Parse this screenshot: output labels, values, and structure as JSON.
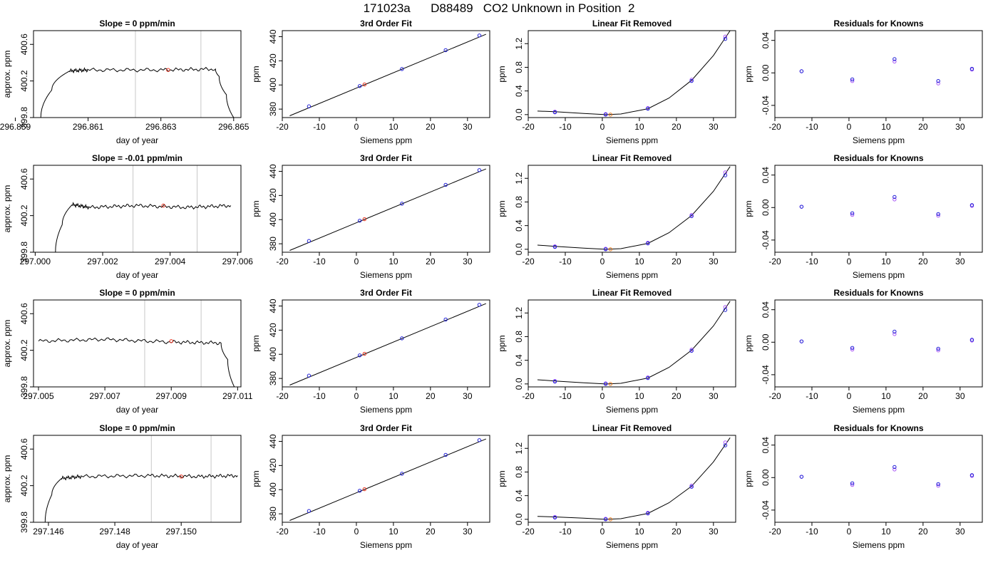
{
  "page": {
    "title": "171023a      D88489   CO2 Unknown in Position  2"
  },
  "colors": {
    "trace": "#000000",
    "marker_lines": "#c8c8c8",
    "unknown_point": "#e8321e",
    "known_point_a": "#1f1fd6",
    "known_point_b": "#a855f7",
    "orange_point": "#e87a1e"
  },
  "chart_data": [
    {
      "type": "line",
      "title": "Slope =  0  ppm/min",
      "xlabel": "day of year",
      "ylabel": "approx. ppm",
      "xlim": [
        296.8595,
        296.8652
      ],
      "ylim": [
        399.8,
        400.75
      ],
      "xticks": [
        "296.859",
        "296.861",
        "296.863",
        "296.865"
      ],
      "xtick_values": [
        296.859,
        296.861,
        296.863,
        296.865
      ],
      "yticks": [
        "399.8",
        "400.2",
        "400.6"
      ],
      "ytick_values": [
        399.8,
        400.2,
        400.6
      ],
      "markers_x": [
        296.8623,
        296.8641
      ],
      "point": {
        "x": 296.8632,
        "y": 400.32
      },
      "trace": {
        "x": [
          296.8597,
          296.86,
          296.8605,
          296.861,
          296.863,
          296.8645,
          296.8646,
          296.8648,
          296.865
        ],
        "y": [
          399.8,
          400.1,
          400.31,
          400.32,
          400.32,
          400.33,
          400.25,
          400.05,
          399.8
        ]
      }
    },
    {
      "type": "scatter",
      "title": "3rd Order Fit",
      "xlabel": "Siemens ppm",
      "ylabel": "ppm",
      "xlim": [
        -20,
        36
      ],
      "ylim": [
        373,
        445
      ],
      "xticks": [
        "-20",
        "-10",
        "0",
        "10",
        "20",
        "30"
      ],
      "xtick_values": [
        -20,
        -10,
        0,
        10,
        20,
        30
      ],
      "yticks": [
        "380",
        "400",
        "420",
        "440"
      ],
      "ytick_values": [
        380,
        400,
        420,
        440
      ],
      "fit_line": {
        "x": [
          -18,
          35
        ],
        "y": [
          374.5,
          442
        ]
      },
      "known_points": {
        "x": [
          -12.8,
          0.9,
          12.3,
          24.1,
          33.2
        ],
        "y": [
          382.3,
          399.1,
          413.2,
          428.8,
          441.0
        ]
      },
      "unknown_point": {
        "x": 2.2,
        "y": 400.4
      }
    },
    {
      "type": "scatter",
      "title": "Linear Fit Removed",
      "xlabel": "Siemens ppm",
      "ylabel": "ppm",
      "xlim": [
        -20,
        36
      ],
      "ylim": [
        -0.05,
        1.42
      ],
      "xticks": [
        "-20",
        "-10",
        "0",
        "10",
        "20",
        "30"
      ],
      "xtick_values": [
        -20,
        -10,
        0,
        10,
        20,
        30
      ],
      "yticks": [
        "0.0",
        "0.4",
        "0.8",
        "1.2"
      ],
      "ytick_values": [
        0,
        0.4,
        0.8,
        1.2
      ],
      "curve": {
        "x": [
          -17.5,
          -12.8,
          -5,
          0.9,
          5,
          12.3,
          18,
          24.1,
          30,
          34.5
        ],
        "y": [
          0.06,
          0.05,
          0.02,
          0.0,
          0.01,
          0.1,
          0.28,
          0.58,
          1.0,
          1.42
        ]
      },
      "known_points_a": {
        "x": [
          -12.8,
          0.9,
          12.3,
          24.1,
          33.2
        ],
        "y": [
          0.04,
          0.0,
          0.1,
          0.57,
          1.28
        ]
      },
      "known_points_b": {
        "x": [
          -12.8,
          0.9,
          12.3,
          24.1,
          33.2
        ],
        "y": [
          0.05,
          0.01,
          0.11,
          0.59,
          1.32
        ]
      },
      "orange_point": {
        "x": 2.2,
        "y": 0.0
      }
    },
    {
      "type": "scatter",
      "title": "Residuals for Knowns",
      "xlabel": "Siemens ppm",
      "ylabel": "ppm",
      "xlim": [
        -20,
        36
      ],
      "ylim": [
        -0.055,
        0.052
      ],
      "xticks": [
        "-20",
        "-10",
        "0",
        "10",
        "20",
        "30"
      ],
      "xtick_values": [
        -20,
        -10,
        0,
        10,
        20,
        30
      ],
      "yticks": [
        "-0.04",
        "0.00",
        "0.04"
      ],
      "ytick_values": [
        -0.04,
        0,
        0.04
      ],
      "points_a": {
        "x": [
          -12.8,
          0.9,
          12.3,
          24.1,
          33.2
        ],
        "y": [
          0.002,
          -0.008,
          0.017,
          -0.01,
          0.005
        ]
      },
      "points_b": {
        "x": [
          -12.8,
          0.9,
          12.3,
          24.1,
          33.2
        ],
        "y": [
          0.002,
          -0.01,
          0.014,
          -0.013,
          0.004
        ]
      }
    },
    {
      "type": "line",
      "title": "Slope =  -0.01  ppm/min",
      "xlabel": "day of year",
      "ylabel": "approx. ppm",
      "xlim": [
        296.99995,
        297.0061
      ],
      "ylim": [
        399.8,
        400.75
      ],
      "xticks": [
        "297.000",
        "297.002",
        "297.004",
        "297.006"
      ],
      "xtick_values": [
        297.0,
        297.002,
        297.004,
        297.006
      ],
      "yticks": [
        "399.8",
        "400.2",
        "400.6"
      ],
      "ytick_values": [
        399.8,
        400.2,
        400.6
      ],
      "markers_x": [
        297.0029,
        297.0048
      ],
      "point": {
        "x": 297.0038,
        "y": 400.31
      },
      "trace": {
        "x": [
          297.0006,
          297.0008,
          297.0011,
          297.0016,
          297.003,
          297.0045,
          297.0058
        ],
        "y": [
          399.8,
          400.1,
          400.32,
          400.29,
          400.31,
          400.29,
          400.31
        ]
      }
    },
    {
      "type": "scatter",
      "title": "3rd Order Fit",
      "xlabel": "Siemens ppm",
      "ylabel": "ppm",
      "xlim": [
        -20,
        36
      ],
      "ylim": [
        373,
        445
      ],
      "xticks": [
        "-20",
        "-10",
        "0",
        "10",
        "20",
        "30"
      ],
      "xtick_values": [
        -20,
        -10,
        0,
        10,
        20,
        30
      ],
      "yticks": [
        "380",
        "400",
        "420",
        "440"
      ],
      "ytick_values": [
        380,
        400,
        420,
        440
      ],
      "fit_line": {
        "x": [
          -18,
          35
        ],
        "y": [
          374.5,
          442
        ]
      },
      "known_points": {
        "x": [
          -12.8,
          0.9,
          12.3,
          24.1,
          33.2
        ],
        "y": [
          382.3,
          399.1,
          413.2,
          428.8,
          441.0
        ]
      },
      "unknown_point": {
        "x": 2.2,
        "y": 400.4
      }
    },
    {
      "type": "scatter",
      "title": "Linear Fit Removed",
      "xlabel": "Siemens ppm",
      "ylabel": "ppm",
      "xlim": [
        -20,
        36
      ],
      "ylim": [
        -0.05,
        1.42
      ],
      "xticks": [
        "-20",
        "-10",
        "0",
        "10",
        "20",
        "30"
      ],
      "xtick_values": [
        -20,
        -10,
        0,
        10,
        20,
        30
      ],
      "yticks": [
        "0.0",
        "0.4",
        "0.8",
        "1.2"
      ],
      "ytick_values": [
        0,
        0.4,
        0.8,
        1.2
      ],
      "curve": {
        "x": [
          -17.5,
          -12.8,
          -5,
          0.9,
          5,
          12.3,
          18,
          24.1,
          30,
          34.5
        ],
        "y": [
          0.07,
          0.05,
          0.02,
          0.0,
          0.01,
          0.1,
          0.28,
          0.57,
          0.98,
          1.4
        ]
      },
      "known_points_a": {
        "x": [
          -12.8,
          0.9,
          12.3,
          24.1,
          33.2
        ],
        "y": [
          0.04,
          0.0,
          0.1,
          0.56,
          1.25
        ]
      },
      "known_points_b": {
        "x": [
          -12.8,
          0.9,
          12.3,
          24.1,
          33.2
        ],
        "y": [
          0.05,
          0.01,
          0.11,
          0.58,
          1.3
        ]
      },
      "orange_point": {
        "x": 2.2,
        "y": 0.0
      }
    },
    {
      "type": "scatter",
      "title": "Residuals for Knowns",
      "xlabel": "Siemens ppm",
      "ylabel": "ppm",
      "xlim": [
        -20,
        36
      ],
      "ylim": [
        -0.055,
        0.052
      ],
      "xticks": [
        "-20",
        "-10",
        "0",
        "10",
        "20",
        "30"
      ],
      "xtick_values": [
        -20,
        -10,
        0,
        10,
        20,
        30
      ],
      "yticks": [
        "-0.04",
        "0.00",
        "0.04"
      ],
      "ytick_values": [
        -0.04,
        0,
        0.04
      ],
      "points_a": {
        "x": [
          -12.8,
          0.9,
          12.3,
          24.1,
          33.2
        ],
        "y": [
          0.001,
          -0.007,
          0.013,
          -0.008,
          0.003
        ]
      },
      "points_b": {
        "x": [
          -12.8,
          0.9,
          12.3,
          24.1,
          33.2
        ],
        "y": [
          0.001,
          -0.009,
          0.01,
          -0.01,
          0.002
        ]
      }
    },
    {
      "type": "line",
      "title": "Slope =  0  ppm/min",
      "xlabel": "day of year",
      "ylabel": "approx. ppm",
      "xlim": [
        297.00485,
        297.0111
      ],
      "ylim": [
        399.8,
        400.75
      ],
      "xticks": [
        "297.005",
        "297.007",
        "297.009",
        "297.011"
      ],
      "xtick_values": [
        297.005,
        297.007,
        297.009,
        297.011
      ],
      "yticks": [
        "399.8",
        "400.2",
        "400.6"
      ],
      "ytick_values": [
        399.8,
        400.2,
        400.6
      ],
      "markers_x": [
        297.0082,
        297.0099
      ],
      "point": {
        "x": 297.009,
        "y": 400.3
      },
      "trace": {
        "x": [
          297.005,
          297.007,
          297.009,
          297.0105,
          297.0107,
          297.0109
        ],
        "y": [
          400.3,
          400.32,
          400.29,
          400.28,
          400.1,
          399.8
        ]
      }
    },
    {
      "type": "scatter",
      "title": "3rd Order Fit",
      "xlabel": "Siemens ppm",
      "ylabel": "ppm",
      "xlim": [
        -20,
        36
      ],
      "ylim": [
        373,
        445
      ],
      "xticks": [
        "-20",
        "-10",
        "0",
        "10",
        "20",
        "30"
      ],
      "xtick_values": [
        -20,
        -10,
        0,
        10,
        20,
        30
      ],
      "yticks": [
        "380",
        "400",
        "420",
        "440"
      ],
      "ytick_values": [
        380,
        400,
        420,
        440
      ],
      "fit_line": {
        "x": [
          -18,
          35
        ],
        "y": [
          374.5,
          442
        ]
      },
      "known_points": {
        "x": [
          -12.8,
          0.9,
          12.3,
          24.1,
          33.2
        ],
        "y": [
          382.3,
          399.1,
          413.2,
          428.8,
          441.0
        ]
      },
      "unknown_point": {
        "x": 2.2,
        "y": 400.4
      }
    },
    {
      "type": "scatter",
      "title": "Linear Fit Removed",
      "xlabel": "Siemens ppm",
      "ylabel": "ppm",
      "xlim": [
        -20,
        36
      ],
      "ylim": [
        -0.05,
        1.42
      ],
      "xticks": [
        "-20",
        "-10",
        "0",
        "10",
        "20",
        "30"
      ],
      "xtick_values": [
        -20,
        -10,
        0,
        10,
        20,
        30
      ],
      "yticks": [
        "0.0",
        "0.4",
        "0.8",
        "1.2"
      ],
      "ytick_values": [
        0,
        0.4,
        0.8,
        1.2
      ],
      "curve": {
        "x": [
          -17.5,
          -12.8,
          -5,
          0.9,
          5,
          12.3,
          18,
          24.1,
          30,
          34.5
        ],
        "y": [
          0.07,
          0.05,
          0.02,
          0.0,
          0.01,
          0.1,
          0.28,
          0.57,
          0.98,
          1.4
        ]
      },
      "known_points_a": {
        "x": [
          -12.8,
          0.9,
          12.3,
          24.1,
          33.2
        ],
        "y": [
          0.04,
          0.0,
          0.1,
          0.56,
          1.25
        ]
      },
      "known_points_b": {
        "x": [
          -12.8,
          0.9,
          12.3,
          24.1,
          33.2
        ],
        "y": [
          0.05,
          0.01,
          0.11,
          0.58,
          1.3
        ]
      },
      "orange_point": {
        "x": 2.2,
        "y": 0.0
      }
    },
    {
      "type": "scatter",
      "title": "Residuals for Knowns",
      "xlabel": "Siemens ppm",
      "ylabel": "ppm",
      "xlim": [
        -20,
        36
      ],
      "ylim": [
        -0.055,
        0.052
      ],
      "xticks": [
        "-20",
        "-10",
        "0",
        "10",
        "20",
        "30"
      ],
      "xtick_values": [
        -20,
        -10,
        0,
        10,
        20,
        30
      ],
      "yticks": [
        "-0.04",
        "0.00",
        "0.04"
      ],
      "ytick_values": [
        -0.04,
        0,
        0.04
      ],
      "points_a": {
        "x": [
          -12.8,
          0.9,
          12.3,
          24.1,
          33.2
        ],
        "y": [
          0.001,
          -0.007,
          0.013,
          -0.008,
          0.003
        ]
      },
      "points_b": {
        "x": [
          -12.8,
          0.9,
          12.3,
          24.1,
          33.2
        ],
        "y": [
          0.001,
          -0.009,
          0.01,
          -0.01,
          0.002
        ]
      }
    },
    {
      "type": "line",
      "title": "Slope =  0  ppm/min",
      "xlabel": "day of year",
      "ylabel": "approx. ppm",
      "xlim": [
        297.14555,
        297.1518
      ],
      "ylim": [
        399.8,
        400.75
      ],
      "xticks": [
        "297.146",
        "297.148",
        "297.150"
      ],
      "xtick_values": [
        297.146,
        297.148,
        297.15
      ],
      "yticks": [
        "399.8",
        "400.2",
        "400.6"
      ],
      "ytick_values": [
        399.8,
        400.2,
        400.6
      ],
      "markers_x": [
        297.1491,
        297.1509
      ],
      "point": {
        "x": 297.15,
        "y": 400.3
      },
      "trace": {
        "x": [
          297.1459,
          297.1461,
          297.1464,
          297.147,
          297.149,
          297.1505,
          297.1517
        ],
        "y": [
          399.8,
          400.1,
          400.28,
          400.3,
          400.31,
          400.3,
          400.31
        ]
      }
    },
    {
      "type": "scatter",
      "title": "3rd Order Fit",
      "xlabel": "Siemens ppm",
      "ylabel": "ppm",
      "xlim": [
        -20,
        36
      ],
      "ylim": [
        373,
        445
      ],
      "xticks": [
        "-20",
        "-10",
        "0",
        "10",
        "20",
        "30"
      ],
      "xtick_values": [
        -20,
        -10,
        0,
        10,
        20,
        30
      ],
      "yticks": [
        "380",
        "400",
        "420",
        "440"
      ],
      "ytick_values": [
        380,
        400,
        420,
        440
      ],
      "fit_line": {
        "x": [
          -18,
          35
        ],
        "y": [
          374.5,
          442
        ]
      },
      "known_points": {
        "x": [
          -12.8,
          0.9,
          12.3,
          24.1,
          33.2
        ],
        "y": [
          382.3,
          399.1,
          413.2,
          428.8,
          441.0
        ]
      },
      "unknown_point": {
        "x": 2.2,
        "y": 400.4
      }
    },
    {
      "type": "scatter",
      "title": "Linear Fit Removed",
      "xlabel": "Siemens ppm",
      "ylabel": "ppm",
      "xlim": [
        -20,
        36
      ],
      "ylim": [
        -0.05,
        1.42
      ],
      "xticks": [
        "-20",
        "-10",
        "0",
        "10",
        "20",
        "30"
      ],
      "xtick_values": [
        -20,
        -10,
        0,
        10,
        20,
        30
      ],
      "yticks": [
        "0.0",
        "0.4",
        "0.8",
        "1.2"
      ],
      "ytick_values": [
        0,
        0.4,
        0.8,
        1.2
      ],
      "curve": {
        "x": [
          -17.5,
          -12.8,
          -5,
          0.9,
          5,
          12.3,
          18,
          24.1,
          30,
          34.5
        ],
        "y": [
          0.05,
          0.04,
          0.02,
          0.0,
          0.01,
          0.1,
          0.28,
          0.56,
          0.97,
          1.38
        ]
      },
      "known_points_a": {
        "x": [
          -12.8,
          0.9,
          12.3,
          24.1,
          33.2
        ],
        "y": [
          0.03,
          0.0,
          0.1,
          0.55,
          1.25
        ]
      },
      "known_points_b": {
        "x": [
          -12.8,
          0.9,
          12.3,
          24.1,
          33.2
        ],
        "y": [
          0.04,
          0.01,
          0.11,
          0.57,
          1.3
        ]
      },
      "orange_point": {
        "x": 2.2,
        "y": 0.0
      }
    },
    {
      "type": "scatter",
      "title": "Residuals for Knowns",
      "xlabel": "Siemens ppm",
      "ylabel": "ppm",
      "xlim": [
        -20,
        36
      ],
      "ylim": [
        -0.055,
        0.052
      ],
      "xticks": [
        "-20",
        "-10",
        "0",
        "10",
        "20",
        "30"
      ],
      "xtick_values": [
        -20,
        -10,
        0,
        10,
        20,
        30
      ],
      "yticks": [
        "-0.04",
        "0.00",
        "0.04"
      ],
      "ytick_values": [
        -0.04,
        0,
        0.04
      ],
      "points_a": {
        "x": [
          -12.8,
          0.9,
          12.3,
          24.1,
          33.2
        ],
        "y": [
          0.001,
          -0.007,
          0.013,
          -0.008,
          0.003
        ]
      },
      "points_b": {
        "x": [
          -12.8,
          0.9,
          12.3,
          24.1,
          33.2
        ],
        "y": [
          0.001,
          -0.009,
          0.01,
          -0.01,
          0.002
        ]
      }
    }
  ]
}
